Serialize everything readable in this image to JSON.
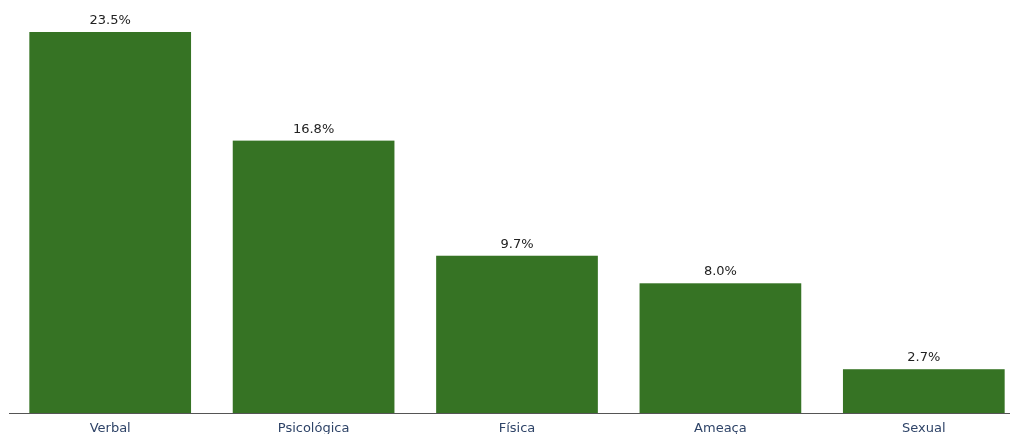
{
  "chart_data": {
    "type": "bar",
    "categories": [
      "Verbal",
      "Psicológica",
      "Física",
      "Ameaça",
      "Sexual"
    ],
    "values": [
      23.5,
      16.8,
      9.7,
      8.0,
      2.7
    ],
    "color": "#367324",
    "value_labels": [
      "23.5%",
      "16.8%",
      "9.7%",
      "8.0%",
      "2.7%"
    ]
  }
}
